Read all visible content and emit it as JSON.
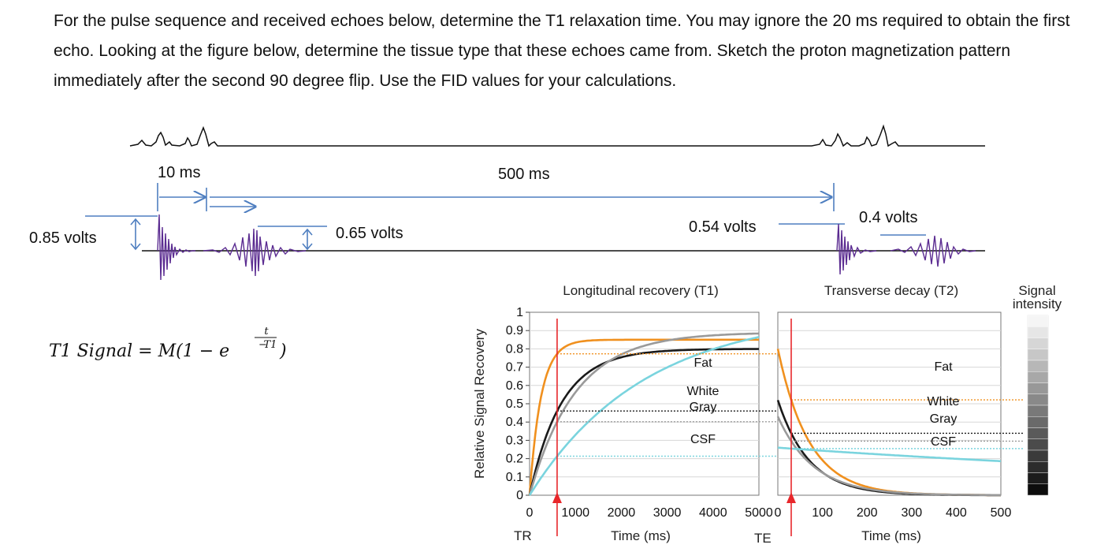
{
  "question": "For the pulse sequence and received echoes below, determine the T1 relaxation time. You may ignore the 20 ms required to obtain the first echo.  Looking at the figure below, determine the tissue type that these echoes came from. Sketch the proton magnetization pattern immediately after the second 90 degree flip. Use the FID values for your calculations.",
  "sequence": {
    "interval_short": "10 ms",
    "interval_long": "500 ms",
    "echoes": [
      "0.85 volts",
      "0.65 volts",
      "0.54 volts",
      "0.4 volts"
    ]
  },
  "formula": {
    "lhs": "T1 Signal = M(1 − e",
    "exp_num": "t",
    "exp_den": "T1",
    "close": ")"
  },
  "colors": {
    "fat": "#f0901e",
    "white": "#1a1a1a",
    "gray": "#9a9a9a",
    "csf": "#7ad4de",
    "marker": "#e8272b",
    "arrow": "#4f7fc0",
    "echo": "#5b2c91"
  },
  "chart_data": [
    {
      "type": "line",
      "title": "Longitudinal recovery (T1)",
      "xlabel": "Time (ms)",
      "ylabel": "Relative Signal Recovery",
      "xlim": [
        0,
        5000
      ],
      "ylim": [
        0,
        1
      ],
      "x_ticks": [
        "0",
        "1000",
        "2000",
        "3000",
        "4000",
        "5000"
      ],
      "y_ticks": [
        "0",
        "0.1",
        "0.2",
        "0.3",
        "0.4",
        "0.5",
        "0.6",
        "0.7",
        "0.8",
        "0.9",
        "1"
      ],
      "marker_label": "TR",
      "marker_x": 600,
      "series": [
        {
          "name": "Fat",
          "plateau": 0.85,
          "t1": 250
        },
        {
          "name": "White",
          "plateau": 0.8,
          "t1": 700
        },
        {
          "name": "Gray",
          "plateau": 0.89,
          "t1": 1000
        },
        {
          "name": "CSF",
          "plateau": 1.0,
          "t1": 2500
        }
      ],
      "labels": [
        "Fat",
        "White",
        "Gray",
        "CSF"
      ]
    },
    {
      "type": "line",
      "title": "Transverse decay (T2)",
      "xlabel": "Time (ms)",
      "xlim": [
        0,
        500
      ],
      "x_ticks": [
        "0",
        "100",
        "200",
        "300",
        "400",
        "500"
      ],
      "marker_label": "TE",
      "marker_x": 30,
      "series": [
        {
          "name": "Fat",
          "start": 0.8,
          "t2": 70
        },
        {
          "name": "White",
          "start": 0.52,
          "t2": 70
        },
        {
          "name": "Gray",
          "start": 0.43,
          "t2": 80
        },
        {
          "name": "CSF",
          "start": 0.26,
          "t2": 1500
        }
      ],
      "labels": [
        "Fat",
        "White",
        "Gray",
        "CSF"
      ]
    }
  ],
  "legend": {
    "title_line1": "Signal",
    "title_line2": "intensity"
  }
}
